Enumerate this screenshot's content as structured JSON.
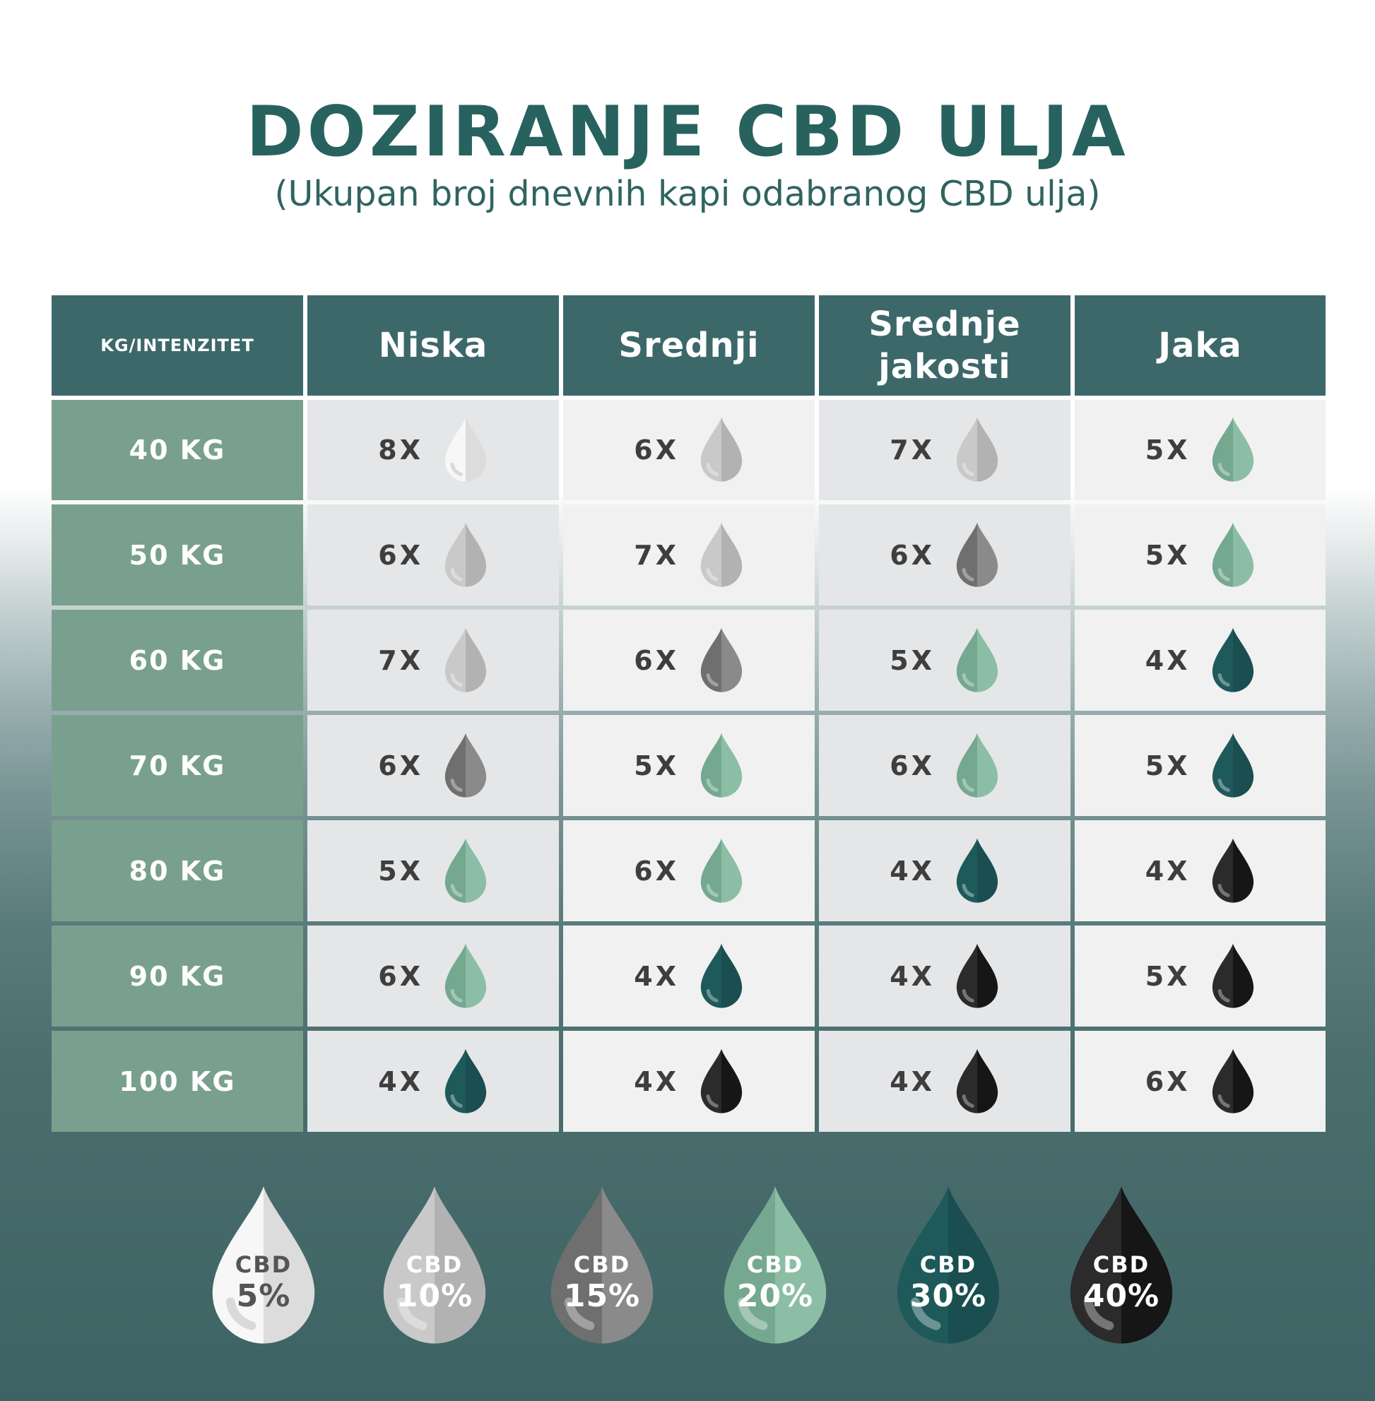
{
  "title": "DOZIRANJE CBD ULJA",
  "subtitle": "(Ukupan broj dnevnih kapi odabranog CBD ulja)",
  "colors": {
    "cbd5": {
      "light": "#f7f7f7",
      "dark": "#dcdcdc",
      "label": "#555555"
    },
    "cbd10": {
      "light": "#c9c9c9",
      "dark": "#b2b2b2",
      "label": "#ffffff"
    },
    "cbd15": {
      "light": "#6f6f6f",
      "dark": "#8a8a8a",
      "label": "#ffffff"
    },
    "cbd20": {
      "light": "#74a88f",
      "dark": "#8cbea6",
      "label": "#ffffff"
    },
    "cbd30": {
      "light": "#1f5a5b",
      "dark": "#1a4e50",
      "label": "#ffffff"
    },
    "cbd40": {
      "light": "#2b2b2b",
      "dark": "#161616",
      "label": "#ffffff"
    }
  },
  "table": {
    "corner_label": "KG/INTENZITET",
    "columns": [
      "Niska",
      "Srednji",
      "Srednje jakosti",
      "Jaka"
    ],
    "rows": [
      {
        "weight": "40 KG",
        "cells": [
          {
            "dose": "8X",
            "cbd": "cbd5"
          },
          {
            "dose": "6X",
            "cbd": "cbd10"
          },
          {
            "dose": "7X",
            "cbd": "cbd10"
          },
          {
            "dose": "5X",
            "cbd": "cbd20"
          }
        ]
      },
      {
        "weight": "50 KG",
        "cells": [
          {
            "dose": "6X",
            "cbd": "cbd10"
          },
          {
            "dose": "7X",
            "cbd": "cbd10"
          },
          {
            "dose": "6X",
            "cbd": "cbd15"
          },
          {
            "dose": "5X",
            "cbd": "cbd20"
          }
        ]
      },
      {
        "weight": "60 KG",
        "cells": [
          {
            "dose": "7X",
            "cbd": "cbd10"
          },
          {
            "dose": "6X",
            "cbd": "cbd15"
          },
          {
            "dose": "5X",
            "cbd": "cbd20"
          },
          {
            "dose": "4X",
            "cbd": "cbd30"
          }
        ]
      },
      {
        "weight": "70 KG",
        "cells": [
          {
            "dose": "6X",
            "cbd": "cbd15"
          },
          {
            "dose": "5X",
            "cbd": "cbd20"
          },
          {
            "dose": "6X",
            "cbd": "cbd20"
          },
          {
            "dose": "5X",
            "cbd": "cbd30"
          }
        ]
      },
      {
        "weight": "80 KG",
        "cells": [
          {
            "dose": "5X",
            "cbd": "cbd20"
          },
          {
            "dose": "6X",
            "cbd": "cbd20"
          },
          {
            "dose": "4X",
            "cbd": "cbd30"
          },
          {
            "dose": "4X",
            "cbd": "cbd40"
          }
        ]
      },
      {
        "weight": "90 KG",
        "cells": [
          {
            "dose": "6X",
            "cbd": "cbd20"
          },
          {
            "dose": "4X",
            "cbd": "cbd30"
          },
          {
            "dose": "4X",
            "cbd": "cbd40"
          },
          {
            "dose": "5X",
            "cbd": "cbd40"
          }
        ]
      },
      {
        "weight": "100 KG",
        "cells": [
          {
            "dose": "4X",
            "cbd": "cbd30"
          },
          {
            "dose": "4X",
            "cbd": "cbd40"
          },
          {
            "dose": "4X",
            "cbd": "cbd40"
          },
          {
            "dose": "6X",
            "cbd": "cbd40"
          }
        ]
      }
    ]
  },
  "legend": [
    {
      "key": "cbd5",
      "label": "CBD",
      "percent": "5%"
    },
    {
      "key": "cbd10",
      "label": "CBD",
      "percent": "10%"
    },
    {
      "key": "cbd15",
      "label": "CBD",
      "percent": "15%"
    },
    {
      "key": "cbd20",
      "label": "CBD",
      "percent": "20%"
    },
    {
      "key": "cbd30",
      "label": "CBD",
      "percent": "30%"
    },
    {
      "key": "cbd40",
      "label": "CBD",
      "percent": "40%"
    }
  ]
}
